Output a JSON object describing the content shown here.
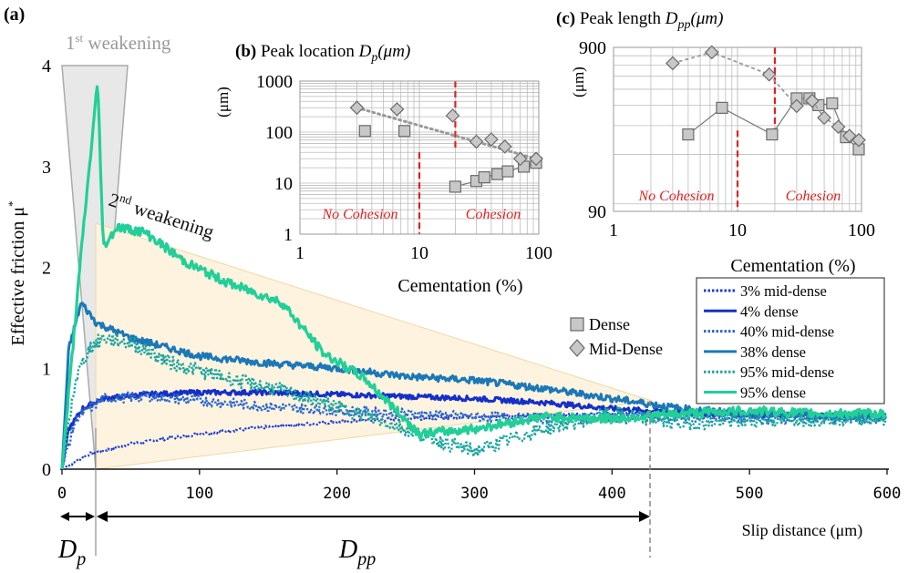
{
  "colors": {
    "s3": "#1a3cd6",
    "s4": "#1530c8",
    "s40": "#2a66d0",
    "s38": "#1b78b8",
    "s95md": "#1aa5a0",
    "s95d": "#22cf98",
    "cement_split": "#e02020",
    "cement_text": "#e02020",
    "inset_marker_fill": "#c8c8c8",
    "inset_marker_edge": "#6a6a6a",
    "weakening1_fill": "#e8e8e8",
    "weakening2_fill": "#fdf1dc"
  },
  "labels": {
    "panel_a": "(a)",
    "weakening1": "1",
    "weakening1_sup": "st",
    "weakening1_rest": " weakening",
    "weakening2": "2",
    "weakening2_sup": "nd",
    "weakening2_rest": " weakening",
    "y_label": "Effective friction μ",
    "y_label_sup": "*",
    "x_label": "Slip distance (μm)",
    "dp": "D",
    "dp_sub": "p",
    "dpp": "D",
    "dpp_sub": "pp"
  },
  "legend": {
    "items": [
      "3% mid-dense",
      "4% dense",
      "40% mid-dense",
      "38% dense",
      "95% mid-dense",
      "95% dense"
    ],
    "markers": [
      "Dense",
      "Mid-Dense"
    ]
  },
  "chart_data": [
    {
      "type": "line",
      "title": "",
      "xlabel": "Slip distance (μm)",
      "ylabel": "Effective friction μ*",
      "xlim": [
        0,
        600
      ],
      "ylim": [
        0,
        4
      ],
      "xticks": [
        "0",
        "100",
        "200",
        "300",
        "400",
        "500",
        "600"
      ],
      "yticks": [
        "0",
        "1",
        "2",
        "3",
        "4"
      ],
      "markers": {
        "Dp": 25,
        "Dpp": 430
      },
      "series": [
        {
          "name": "3% mid-dense",
          "style": "dotted",
          "x": [
            0,
            20,
            50,
            100,
            150,
            200,
            250,
            300,
            350,
            400,
            450,
            500,
            550,
            600
          ],
          "y": [
            0,
            0.15,
            0.25,
            0.35,
            0.42,
            0.47,
            0.5,
            0.52,
            0.54,
            0.55,
            0.55,
            0.55,
            0.55,
            0.55
          ]
        },
        {
          "name": "4% dense",
          "style": "solid",
          "x": [
            0,
            5,
            15,
            30,
            60,
            100,
            150,
            200,
            250,
            300,
            350,
            400,
            450,
            500,
            550,
            600
          ],
          "y": [
            0,
            0.4,
            0.6,
            0.7,
            0.74,
            0.76,
            0.76,
            0.74,
            0.72,
            0.7,
            0.66,
            0.6,
            0.56,
            0.54,
            0.53,
            0.52
          ]
        },
        {
          "name": "40% mid-dense",
          "style": "dotted",
          "x": [
            0,
            10,
            30,
            60,
            100,
            150,
            200,
            250,
            300,
            350,
            400,
            450,
            500,
            550,
            600
          ],
          "y": [
            0,
            0.5,
            0.7,
            0.72,
            0.68,
            0.62,
            0.58,
            0.55,
            0.52,
            0.5,
            0.5,
            0.52,
            0.5,
            0.5,
            0.5
          ]
        },
        {
          "name": "38% dense",
          "style": "solid",
          "x": [
            0,
            5,
            14,
            25,
            50,
            100,
            150,
            200,
            250,
            300,
            350,
            400,
            450,
            500,
            550,
            600
          ],
          "y": [
            0,
            1.2,
            1.65,
            1.45,
            1.3,
            1.12,
            1.05,
            1.0,
            0.92,
            0.88,
            0.8,
            0.7,
            0.6,
            0.55,
            0.53,
            0.52
          ]
        },
        {
          "name": "95% mid-dense",
          "style": "dotted",
          "x": [
            0,
            10,
            20,
            30,
            50,
            80,
            120,
            160,
            200,
            250,
            280,
            300,
            350,
            400,
            450,
            500,
            550,
            600
          ],
          "y": [
            0,
            0.9,
            1.2,
            1.3,
            1.25,
            1.05,
            0.9,
            0.78,
            0.62,
            0.4,
            0.25,
            0.18,
            0.4,
            0.55,
            0.45,
            0.48,
            0.5,
            0.5
          ]
        },
        {
          "name": "95% dense",
          "style": "solid",
          "x": [
            0,
            15,
            26,
            30,
            40,
            60,
            90,
            120,
            160,
            190,
            220,
            260,
            300,
            350,
            400,
            450,
            500,
            550,
            600
          ],
          "y": [
            0,
            2.3,
            3.85,
            2.2,
            2.4,
            2.35,
            2.05,
            1.85,
            1.65,
            1.15,
            0.9,
            0.35,
            0.4,
            0.52,
            0.5,
            0.55,
            0.58,
            0.55,
            0.55
          ]
        }
      ]
    },
    {
      "type": "scatter",
      "title": "(b) Peak location D",
      "title_sub": "p",
      "title_rest": "(μm)",
      "xlabel": "Cementation (%)",
      "ylabel": "(μm)",
      "xscale": "log",
      "yscale": "log",
      "xlim": [
        1,
        100
      ],
      "ylim": [
        1,
        1000
      ],
      "xticks": [
        "1",
        "10",
        "100"
      ],
      "yticks": [
        "1",
        "10",
        "100",
        "1000"
      ],
      "annotations": [
        "No Cohesion",
        "Cohesion"
      ],
      "series": [
        {
          "name": "Dense",
          "marker": "square",
          "x": [
            3.5,
            7.5,
            20,
            30,
            35,
            45,
            55,
            75,
            95
          ],
          "y": [
            105,
            105,
            8.5,
            11,
            13,
            15,
            17,
            21,
            25
          ]
        },
        {
          "name": "Mid-Dense",
          "marker": "diamond",
          "x": [
            3,
            6.5,
            19,
            30,
            40,
            52,
            70,
            95
          ],
          "y": [
            300,
            280,
            210,
            65,
            72,
            52,
            30,
            30
          ]
        }
      ]
    },
    {
      "type": "scatter",
      "title": "(c) Peak length D",
      "title_sub": "pp",
      "title_rest": "(μm)",
      "xlabel": "Cementation (%)",
      "ylabel": "(μm)",
      "xscale": "log",
      "yscale": "log",
      "xlim": [
        1,
        100
      ],
      "ylim": [
        90,
        900
      ],
      "xticks": [
        "1",
        "10",
        "100"
      ],
      "yticks": [
        "90",
        "900"
      ],
      "annotations": [
        "No Cohesion",
        "Cohesion"
      ],
      "series": [
        {
          "name": "Dense",
          "marker": "square",
          "x": [
            4,
            7.5,
            19,
            30,
            38,
            45,
            58,
            75,
            95
          ],
          "y": [
            265,
            385,
            265,
            440,
            440,
            400,
            410,
            255,
            215
          ]
        },
        {
          "name": "Mid-Dense",
          "marker": "diamond",
          "x": [
            3,
            6.2,
            18,
            30,
            40,
            50,
            65,
            80,
            95
          ],
          "y": [
            720,
            840,
            615,
            395,
            425,
            335,
            295,
            260,
            245
          ]
        }
      ]
    }
  ]
}
